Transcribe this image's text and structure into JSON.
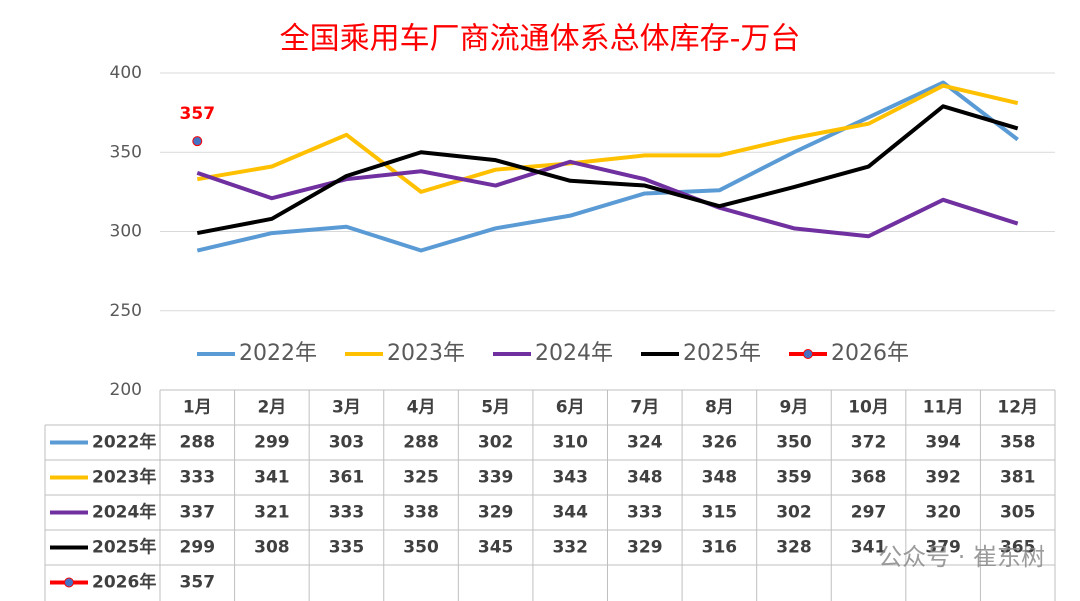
{
  "chart_data": {
    "type": "line",
    "title": "全国乘用车厂商流通体系总体库存-万台",
    "categories": [
      "1月",
      "2月",
      "3月",
      "4月",
      "5月",
      "6月",
      "7月",
      "8月",
      "9月",
      "10月",
      "11月",
      "12月"
    ],
    "series": [
      {
        "name": "2022年",
        "color": "#5b9bd5",
        "values": [
          288,
          299,
          303,
          288,
          302,
          310,
          324,
          326,
          350,
          372,
          394,
          358
        ]
      },
      {
        "name": "2023年",
        "color": "#ffc000",
        "values": [
          333,
          341,
          361,
          325,
          339,
          343,
          348,
          348,
          359,
          368,
          392,
          381
        ]
      },
      {
        "name": "2024年",
        "color": "#7030a0",
        "values": [
          337,
          321,
          333,
          338,
          329,
          344,
          333,
          315,
          302,
          297,
          320,
          305
        ]
      },
      {
        "name": "2025年",
        "color": "#000000",
        "values": [
          299,
          308,
          335,
          350,
          345,
          332,
          329,
          316,
          328,
          341,
          379,
          365
        ]
      },
      {
        "name": "2026年",
        "color": "#ff0000",
        "marker_color": "#4472c4",
        "values": [
          357,
          null,
          null,
          null,
          null,
          null,
          null,
          null,
          null,
          null,
          null,
          null
        ]
      }
    ],
    "ylim": [
      200,
      400
    ],
    "yticks": [
      200,
      250,
      300,
      350,
      400
    ],
    "grid": true,
    "watermark": "公众号 · 崔东树"
  }
}
